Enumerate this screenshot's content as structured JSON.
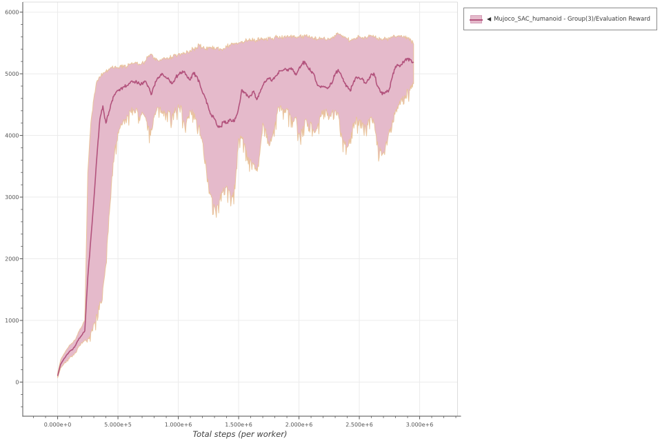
{
  "legend": {
    "marker": "◀",
    "label": "Mujoco_SAC_humanoid - Group(3)/Evaluation Reward"
  },
  "colors": {
    "line": "#b2527c",
    "band": "#e5bacb",
    "band_edge": "#e9c39b",
    "swatch_border": "#d49fb9",
    "grid": "#ebebeb",
    "axis_dark": "#6f6f6f",
    "axis_light": "#dcdcdc",
    "tick": "#555555",
    "tick_label": "#555555"
  },
  "chart_data": {
    "type": "line",
    "title": "",
    "xlabel": "Total steps (per worker)",
    "ylabel": "",
    "grid": true,
    "legend_position": "outside-top-right",
    "x_axis": {
      "tick_labels": [
        "0.000e+0",
        "5.000e+5",
        "1.000e+6",
        "1.500e+6",
        "2.000e+6",
        "2.500e+6",
        "3.000e+6"
      ],
      "tick_values": [
        0,
        500000,
        1000000,
        1500000,
        2000000,
        2500000,
        3000000
      ],
      "minor_step": 100000,
      "minor_range": [
        -200000,
        3300000
      ],
      "lim": [
        -289000,
        3314000
      ]
    },
    "y_axis": {
      "tick_labels": [
        "0",
        "1000",
        "2000",
        "3000",
        "4000",
        "5000",
        "6000"
      ],
      "tick_values": [
        0,
        1000,
        2000,
        3000,
        4000,
        5000,
        6000
      ],
      "minor_step": 200,
      "minor_range": [
        -400,
        5800
      ],
      "lim": [
        -553,
        6163
      ]
    },
    "series": [
      {
        "name": "Mujoco_SAC_humanoid - Group(3)/Evaluation Reward",
        "line_color": "#b2527c",
        "band_color": "#e5bacb",
        "band_edge_color": "#e9c39b",
        "x_start": 0,
        "x_interval": 25000,
        "mean": [
          100,
          290,
          370,
          440,
          500,
          530,
          600,
          700,
          760,
          830,
          1700,
          2320,
          2950,
          3650,
          4260,
          4480,
          4200,
          4380,
          4560,
          4660,
          4730,
          4770,
          4790,
          4810,
          4850,
          4860,
          4890,
          4840,
          4840,
          4880,
          4800,
          4660,
          4800,
          4920,
          4970,
          4980,
          4930,
          4900,
          4840,
          4930,
          4985,
          5020,
          5040,
          4940,
          4900,
          5020,
          4960,
          4870,
          4700,
          4600,
          4450,
          4320,
          4270,
          4150,
          4140,
          4220,
          4200,
          4260,
          4230,
          4280,
          4450,
          4740,
          4700,
          4640,
          4650,
          4720,
          4580,
          4690,
          4810,
          4880,
          4930,
          4880,
          4950,
          5010,
          5050,
          5070,
          5050,
          5080,
          5070,
          4980,
          5090,
          5160,
          5190,
          5100,
          5040,
          4990,
          4830,
          4790,
          4800,
          4780,
          4790,
          4850,
          5000,
          5070,
          4980,
          4870,
          4790,
          4720,
          4850,
          4950,
          4930,
          4930,
          4850,
          4900,
          5000,
          4990,
          4800,
          4700,
          4680,
          4700,
          4760,
          4960,
          5120,
          5140,
          5150,
          5210,
          5240,
          5230,
          5180
        ],
        "band_low": [
          70,
          230,
          290,
          350,
          400,
          430,
          480,
          580,
          640,
          680,
          700,
          800,
          950,
          1100,
          1300,
          1520,
          1900,
          2680,
          3340,
          3800,
          4050,
          4190,
          4260,
          4330,
          4400,
          4420,
          4440,
          4300,
          4380,
          4300,
          4150,
          4110,
          4300,
          4450,
          4460,
          4400,
          4350,
          4380,
          4330,
          4450,
          4500,
          4470,
          4200,
          4300,
          4400,
          4380,
          4250,
          4170,
          3900,
          3600,
          3200,
          3000,
          2850,
          2870,
          3050,
          3150,
          3180,
          3100,
          3000,
          3300,
          3950,
          3980,
          3870,
          3650,
          3610,
          3530,
          3470,
          3700,
          4200,
          4100,
          3850,
          3960,
          4170,
          4450,
          4480,
          4420,
          4440,
          4340,
          4230,
          4300,
          4040,
          4100,
          4250,
          4190,
          4210,
          4060,
          4110,
          4320,
          4410,
          4430,
          4280,
          4380,
          4410,
          4360,
          4040,
          3890,
          3810,
          3950,
          4200,
          4300,
          4250,
          4200,
          4150,
          4250,
          4300,
          4200,
          3900,
          3750,
          3730,
          3900,
          4100,
          4250,
          4400,
          4500,
          4600,
          4650,
          4750,
          4800,
          4840
        ],
        "band_high": [
          140,
          360,
          450,
          530,
          600,
          640,
          700,
          820,
          900,
          1000,
          3400,
          4200,
          4600,
          4880,
          4950,
          5000,
          5040,
          5080,
          5100,
          5120,
          5100,
          5120,
          5130,
          5120,
          5150,
          5160,
          5170,
          5160,
          5180,
          5200,
          5280,
          5320,
          5250,
          5230,
          5230,
          5240,
          5250,
          5260,
          5270,
          5300,
          5320,
          5330,
          5340,
          5360,
          5380,
          5400,
          5420,
          5470,
          5420,
          5400,
          5420,
          5420,
          5410,
          5420,
          5400,
          5410,
          5440,
          5470,
          5480,
          5490,
          5500,
          5520,
          5530,
          5540,
          5550,
          5550,
          5540,
          5560,
          5570,
          5560,
          5580,
          5570,
          5600,
          5590,
          5580,
          5600,
          5610,
          5600,
          5620,
          5600,
          5590,
          5600,
          5620,
          5600,
          5590,
          5580,
          5560,
          5580,
          5570,
          5550,
          5560,
          5580,
          5620,
          5650,
          5620,
          5600,
          5560,
          5540,
          5560,
          5580,
          5600,
          5590,
          5600,
          5610,
          5620,
          5600,
          5580,
          5560,
          5570,
          5560,
          5580,
          5590,
          5600,
          5610,
          5620,
          5600,
          5580,
          5560,
          5480
        ]
      }
    ]
  }
}
